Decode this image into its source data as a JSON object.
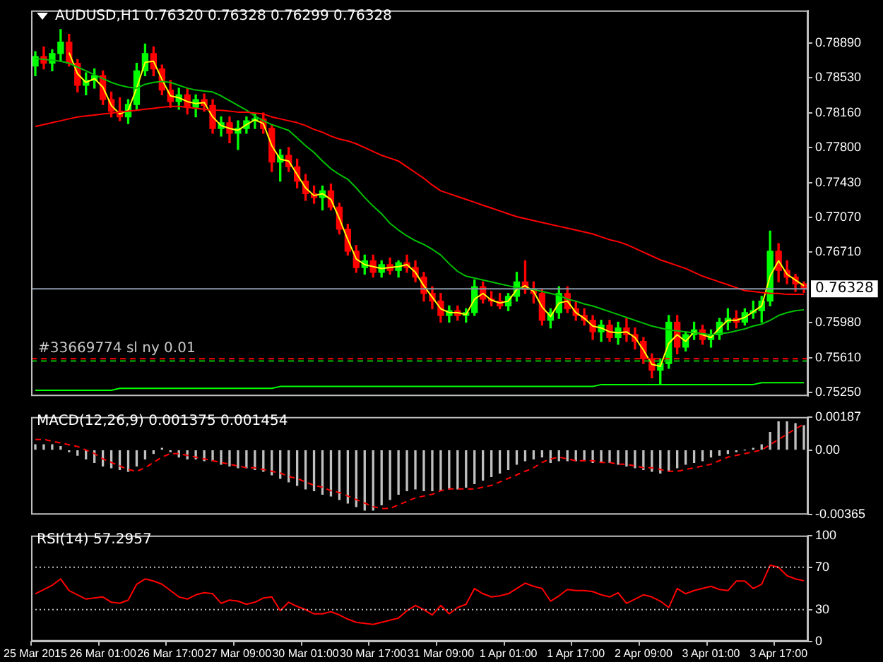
{
  "chart_data": [
    {
      "type": "candlestick",
      "title": "AUDUSD,H1  0.76320 0.76328 0.76299 0.76328",
      "tick_labels": "y",
      "grid": false,
      "categories": [
        null,
        null,
        null,
        null,
        null,
        null,
        null,
        null,
        null,
        null,
        null,
        null,
        null,
        null,
        null,
        null,
        null,
        null,
        null,
        null,
        null,
        null,
        null,
        null,
        null,
        null,
        null,
        null,
        null,
        null,
        null,
        null,
        null,
        null,
        null,
        null,
        null,
        null,
        null,
        null,
        null,
        null,
        null,
        null,
        null,
        null,
        null,
        null,
        null,
        null,
        null,
        null,
        null,
        null,
        null,
        null,
        null,
        null,
        null,
        null,
        null,
        null,
        null,
        null,
        null,
        null,
        null,
        null,
        null,
        null,
        null,
        null,
        null,
        null,
        null,
        null,
        null,
        null,
        null,
        null,
        null,
        null,
        null,
        null,
        null,
        null,
        null,
        null,
        null,
        null,
        null,
        null
      ],
      "ohlc": [
        [
          0.7865,
          0.788,
          0.7855,
          0.7875
        ],
        [
          0.7875,
          0.7885,
          0.7862,
          0.7868
        ],
        [
          0.7868,
          0.7882,
          0.786,
          0.7878
        ],
        [
          0.7878,
          0.7903,
          0.787,
          0.789
        ],
        [
          0.789,
          0.7898,
          0.7865,
          0.7868
        ],
        [
          0.7868,
          0.7872,
          0.7838,
          0.7845
        ],
        [
          0.7845,
          0.7858,
          0.7835,
          0.785
        ],
        [
          0.785,
          0.7862,
          0.7842,
          0.7855
        ],
        [
          0.7855,
          0.786,
          0.7825,
          0.783
        ],
        [
          0.783,
          0.7838,
          0.7812,
          0.7818
        ],
        [
          0.7818,
          0.7832,
          0.7808,
          0.7812
        ],
        [
          0.7812,
          0.783,
          0.7805,
          0.7825
        ],
        [
          0.7825,
          0.7868,
          0.782,
          0.786
        ],
        [
          0.786,
          0.7888,
          0.7855,
          0.7878
        ],
        [
          0.7878,
          0.7885,
          0.7855,
          0.7862
        ],
        [
          0.7862,
          0.7866,
          0.7835,
          0.784
        ],
        [
          0.784,
          0.785,
          0.7822,
          0.7828
        ],
        [
          0.7828,
          0.7842,
          0.782,
          0.7835
        ],
        [
          0.7835,
          0.7842,
          0.7815,
          0.7822
        ],
        [
          0.7822,
          0.7835,
          0.7812,
          0.783
        ],
        [
          0.783,
          0.7836,
          0.7818,
          0.7824
        ],
        [
          0.7824,
          0.783,
          0.7795,
          0.78
        ],
        [
          0.78,
          0.7812,
          0.7792,
          0.7806
        ],
        [
          0.7806,
          0.7812,
          0.7785,
          0.7795
        ],
        [
          0.7795,
          0.7808,
          0.7778,
          0.78
        ],
        [
          0.78,
          0.7812,
          0.7795,
          0.7808
        ],
        [
          0.7808,
          0.7815,
          0.78,
          0.781
        ],
        [
          0.781,
          0.7816,
          0.7795,
          0.78
        ],
        [
          0.78,
          0.7803,
          0.7755,
          0.7765
        ],
        [
          0.7765,
          0.7778,
          0.7745,
          0.7772
        ],
        [
          0.7772,
          0.778,
          0.7755,
          0.776
        ],
        [
          0.776,
          0.7768,
          0.7738,
          0.7745
        ],
        [
          0.7745,
          0.7752,
          0.7725,
          0.7732
        ],
        [
          0.7732,
          0.774,
          0.7722,
          0.7728
        ],
        [
          0.7728,
          0.774,
          0.7715,
          0.7735
        ],
        [
          0.7735,
          0.7742,
          0.7715,
          0.7718
        ],
        [
          0.7718,
          0.7722,
          0.769,
          0.7695
        ],
        [
          0.7695,
          0.77,
          0.7668,
          0.7672
        ],
        [
          0.7672,
          0.7678,
          0.765,
          0.7655
        ],
        [
          0.7655,
          0.7668,
          0.7648,
          0.7662
        ],
        [
          0.7662,
          0.7668,
          0.7645,
          0.765
        ],
        [
          0.765,
          0.7662,
          0.7645,
          0.7658
        ],
        [
          0.7658,
          0.7665,
          0.7648,
          0.7652
        ],
        [
          0.7652,
          0.7662,
          0.7645,
          0.766
        ],
        [
          0.766,
          0.7668,
          0.765,
          0.7655
        ],
        [
          0.7655,
          0.7662,
          0.764,
          0.7645
        ],
        [
          0.7645,
          0.765,
          0.762,
          0.7628
        ],
        [
          0.7628,
          0.7635,
          0.7612,
          0.762
        ],
        [
          0.762,
          0.7628,
          0.7598,
          0.7605
        ],
        [
          0.7605,
          0.7615,
          0.7598,
          0.761
        ],
        [
          0.761,
          0.7615,
          0.76,
          0.7605
        ],
        [
          0.7605,
          0.7612,
          0.7598,
          0.7608
        ],
        [
          0.7608,
          0.7642,
          0.7605,
          0.7635
        ],
        [
          0.7635,
          0.764,
          0.7618,
          0.7622
        ],
        [
          0.7622,
          0.763,
          0.7615,
          0.762
        ],
        [
          0.762,
          0.7628,
          0.7612,
          0.7615
        ],
        [
          0.7615,
          0.7628,
          0.761,
          0.7625
        ],
        [
          0.7625,
          0.765,
          0.762,
          0.764
        ],
        [
          0.764,
          0.7662,
          0.7628,
          0.7632
        ],
        [
          0.7632,
          0.764,
          0.7618,
          0.7628
        ],
        [
          0.7628,
          0.7632,
          0.7595,
          0.76
        ],
        [
          0.76,
          0.7612,
          0.7592,
          0.7608
        ],
        [
          0.7608,
          0.7635,
          0.7602,
          0.7628
        ],
        [
          0.7628,
          0.7635,
          0.7608,
          0.7612
        ],
        [
          0.7612,
          0.762,
          0.76,
          0.7605
        ],
        [
          0.7605,
          0.7612,
          0.7595,
          0.76
        ],
        [
          0.76,
          0.7605,
          0.758,
          0.7588
        ],
        [
          0.7588,
          0.76,
          0.7578,
          0.7595
        ],
        [
          0.7595,
          0.76,
          0.7578,
          0.7582
        ],
        [
          0.7582,
          0.7598,
          0.7575,
          0.7592
        ],
        [
          0.7592,
          0.7602,
          0.7578,
          0.7585
        ],
        [
          0.7585,
          0.7592,
          0.757,
          0.7578
        ],
        [
          0.7578,
          0.7582,
          0.7555,
          0.756
        ],
        [
          0.756,
          0.7565,
          0.754,
          0.7548
        ],
        [
          0.7548,
          0.756,
          0.7533,
          0.7555
        ],
        [
          0.7555,
          0.7605,
          0.755,
          0.7598
        ],
        [
          0.7598,
          0.7605,
          0.7565,
          0.7572
        ],
        [
          0.7572,
          0.7588,
          0.7568,
          0.7585
        ],
        [
          0.7585,
          0.7598,
          0.758,
          0.759
        ],
        [
          0.759,
          0.7595,
          0.7575,
          0.758
        ],
        [
          0.758,
          0.759,
          0.7572,
          0.7585
        ],
        [
          0.7585,
          0.7602,
          0.758,
          0.7598
        ],
        [
          0.7598,
          0.7612,
          0.759,
          0.7602
        ],
        [
          0.7602,
          0.761,
          0.7592,
          0.7598
        ],
        [
          0.7598,
          0.7612,
          0.7595,
          0.7608
        ],
        [
          0.7608,
          0.762,
          0.7602,
          0.761
        ],
        [
          0.761,
          0.7625,
          0.7598,
          0.762
        ],
        [
          0.762,
          0.7693,
          0.7615,
          0.7672
        ],
        [
          0.7672,
          0.768,
          0.764,
          0.7652
        ],
        [
          0.7652,
          0.7662,
          0.7638,
          0.7645
        ],
        [
          0.7645,
          0.7648,
          0.763,
          0.7638
        ],
        [
          0.7638,
          0.764,
          0.7629,
          0.76328
        ]
      ],
      "colors": [
        "#00ff00",
        "#ff0000",
        "#00ff00",
        "#00ff00",
        "#ff0000",
        "#ff0000",
        "#00ff00",
        "#00ff00",
        "#ff0000",
        "#ff0000",
        "#ff0000",
        "#00ff00",
        "#00ff00",
        "#00ff00",
        "#ff0000",
        "#ff0000",
        "#ff0000",
        "#00ff00",
        "#ff0000",
        "#00ff00",
        "#ff0000",
        "#ff0000",
        "#00ff00",
        "#ff0000",
        "#00ff00",
        "#00ff00",
        "#00ff00",
        "#ff0000",
        "#ff0000",
        "#00ff00",
        "#ff0000",
        "#ff0000",
        "#ff0000",
        "#ff0000",
        "#00ff00",
        "#ff0000",
        "#ff0000",
        "#ff0000",
        "#ff0000",
        "#00ff00",
        "#ff0000",
        "#00ff00",
        "#ff0000",
        "#00ff00",
        "#ff0000",
        "#ff0000",
        "#ff0000",
        "#ff0000",
        "#ff0000",
        "#00ff00",
        "#ff0000",
        "#00ff00",
        "#00ff00",
        "#ff0000",
        "#ff0000",
        "#ff0000",
        "#00ff00",
        "#00ff00",
        "#ff0000",
        "#ff0000",
        "#ff0000",
        "#00ff00",
        "#00ff00",
        "#ff0000",
        "#ff0000",
        "#ff0000",
        "#ff0000",
        "#00ff00",
        "#ff0000",
        "#00ff00",
        "#ff0000",
        "#ff0000",
        "#ff0000",
        "#ff0000",
        "#00ff00",
        "#00ff00",
        "#ff0000",
        "#00ff00",
        "#00ff00",
        "#ff0000",
        "#00ff00",
        "#00ff00",
        "#00ff00",
        "#ff0000",
        "#00ff00",
        "#00ff00",
        "#00ff00",
        "#00ff00",
        "#ff0000",
        "#ff0000",
        "#ff0000",
        "#ff0000"
      ],
      "series": [
        {
          "type": "line",
          "color": "#ff0000",
          "values": [
            0.7802,
            0.7804,
            0.7806,
            0.7808,
            0.781,
            0.7812,
            0.7813,
            0.7814,
            0.7815,
            0.7816,
            0.7817,
            0.7818,
            0.7819,
            0.782,
            0.7821,
            0.7822,
            0.7823,
            0.7823,
            0.7822,
            0.7821,
            0.782,
            0.7819,
            0.7819,
            0.7818,
            0.7817,
            0.7817,
            0.7816,
            0.7815,
            0.7812,
            0.781,
            0.7808,
            0.7806,
            0.7803,
            0.7799,
            0.7796,
            0.7792,
            0.7789,
            0.7787,
            0.7784,
            0.778,
            0.7776,
            0.7772,
            0.7769,
            0.7766,
            0.776,
            0.7754,
            0.7748,
            0.7741,
            0.7735,
            0.7732,
            0.7729,
            0.7726,
            0.7723,
            0.772,
            0.7717,
            0.7714,
            0.7711,
            0.7708,
            0.7706,
            0.7704,
            0.7702,
            0.77,
            0.7698,
            0.7696,
            0.7694,
            0.7692,
            0.769,
            0.7687,
            0.7684,
            0.7682,
            0.7679,
            0.7675,
            0.7671,
            0.7667,
            0.7663,
            0.766,
            0.7657,
            0.7654,
            0.765,
            0.7646,
            0.7643,
            0.764,
            0.7637,
            0.7634,
            0.7631,
            0.763,
            0.7629,
            0.7628,
            0.7628,
            0.7627,
            0.7627,
            0.7627
          ]
        },
        {
          "type": "line",
          "color": "#00c000",
          "values": [
            0.7873,
            0.7872,
            0.7871,
            0.787,
            0.7868,
            0.7864,
            0.786,
            0.7856,
            0.7852,
            0.7848,
            0.7845,
            0.7843,
            0.7842,
            0.7846,
            0.7848,
            0.7849,
            0.7848,
            0.7845,
            0.7842,
            0.784,
            0.7839,
            0.7838,
            0.7834,
            0.7829,
            0.7824,
            0.7819,
            0.7813,
            0.7808,
            0.7804,
            0.7801,
            0.7798,
            0.779,
            0.7782,
            0.7775,
            0.7766,
            0.7758,
            0.7752,
            0.7747,
            0.7738,
            0.7728,
            0.7719,
            0.7711,
            0.7701,
            0.7694,
            0.7688,
            0.7683,
            0.7679,
            0.7674,
            0.7668,
            0.7659,
            0.7651,
            0.7646,
            0.7644,
            0.7642,
            0.764,
            0.7638,
            0.7636,
            0.7634,
            0.7633,
            0.7632,
            0.763,
            0.7628,
            0.7626,
            0.7622,
            0.762,
            0.7617,
            0.7615,
            0.7612,
            0.7609,
            0.7606,
            0.7603,
            0.76,
            0.7597,
            0.7594,
            0.7592,
            0.759,
            0.7589,
            0.7588,
            0.7587,
            0.7586,
            0.7585,
            0.7586,
            0.7587,
            0.7589,
            0.7591,
            0.7594,
            0.7596,
            0.76,
            0.7605,
            0.7608,
            0.761,
            0.7611
          ]
        },
        {
          "type": "line",
          "color": "#ffff00",
          "values": [
            null,
            null,
            null,
            null,
            0.7879,
            0.7857,
            0.7848,
            0.7852,
            0.7843,
            0.7824,
            0.7815,
            0.7819,
            0.7842,
            0.7869,
            0.787,
            0.7851,
            0.7834,
            0.7832,
            0.7828,
            0.7826,
            0.7827,
            0.7812,
            0.7803,
            0.78,
            0.7798,
            0.7804,
            0.7809,
            0.7805,
            0.7782,
            0.7768,
            0.7766,
            0.7752,
            0.7738,
            0.773,
            0.7732,
            0.7726,
            0.7706,
            0.7684,
            0.7664,
            0.7658,
            0.7656,
            0.7654,
            0.7655,
            0.7656,
            0.7658,
            0.765,
            0.7636,
            0.7624,
            0.7612,
            0.7608,
            0.7608,
            0.7606,
            0.7622,
            0.7628,
            0.7621,
            0.7618,
            0.762,
            0.7632,
            0.7636,
            0.763,
            0.7614,
            0.7604,
            0.7618,
            0.762,
            0.7608,
            0.7602,
            0.7594,
            0.7592,
            0.7588,
            0.7587,
            0.7588,
            0.7582,
            0.7569,
            0.7554,
            0.7552,
            0.7576,
            0.7585,
            0.7578,
            0.7588,
            0.7585,
            0.7582,
            0.7592,
            0.76,
            0.76,
            0.7603,
            0.7609,
            0.7615,
            0.7646,
            0.7662,
            0.7648,
            0.7642,
            0.7636
          ]
        },
        {
          "type": "line",
          "color": "#00ff00",
          "values": [
            0.7527,
            0.7527,
            0.7527,
            0.7527,
            0.7527,
            0.7527,
            0.7527,
            0.7527,
            0.7527,
            0.7527,
            0.7529,
            0.7529,
            0.7529,
            0.7529,
            0.7529,
            0.7529,
            0.7529,
            0.7529,
            0.7529,
            0.7529,
            0.7529,
            0.7529,
            0.7529,
            0.7529,
            0.7529,
            0.7529,
            0.7529,
            0.7529,
            0.7529,
            0.7531,
            0.7531,
            0.7531,
            0.7531,
            0.7531,
            0.7531,
            0.7531,
            0.7531,
            0.7531,
            0.7531,
            0.7531,
            0.7531,
            0.7531,
            0.7531,
            0.7531,
            0.7531,
            0.7531,
            0.7531,
            0.7531,
            0.7531,
            0.7531,
            0.7531,
            0.7531,
            0.7531,
            0.7531,
            0.7531,
            0.7531,
            0.7531,
            0.7531,
            0.7531,
            0.7531,
            0.7531,
            0.7531,
            0.7531,
            0.7531,
            0.7531,
            0.7531,
            0.7531,
            0.7533,
            0.7533,
            0.7533,
            0.7533,
            0.7533,
            0.7533,
            0.7533,
            0.7533,
            0.7533,
            0.7533,
            0.7533,
            0.7533,
            0.7533,
            0.7533,
            0.7533,
            0.7533,
            0.7533,
            0.7533,
            0.7533,
            0.7535,
            0.7535,
            0.7535,
            0.7535,
            0.7535,
            0.7535
          ]
        }
      ],
      "ylim": [
        0.7521,
        0.7923
      ],
      "yticks": [
        {
          "value": 0.7889,
          "label": "0.78890"
        },
        {
          "value": 0.7853,
          "label": "0.78530"
        },
        {
          "value": 0.7816,
          "label": "0.78160"
        },
        {
          "value": 0.778,
          "label": "0.77800"
        },
        {
          "value": 0.7743,
          "label": "0.77430"
        },
        {
          "value": 0.7707,
          "label": "0.77070"
        },
        {
          "value": 0.7671,
          "label": "0.76710"
        },
        {
          "value": 0.7598,
          "label": "0.75980"
        },
        {
          "value": 0.7561,
          "label": "0.75610"
        },
        {
          "value": 0.7525,
          "label": "0.75250"
        }
      ],
      "ref_lines": [
        {
          "axis": "y",
          "value": 0.76328,
          "label": "0.76328",
          "color": "#8898a8",
          "line_style": "solid"
        },
        {
          "axis": "y",
          "value": 0.756,
          "label": "#33669774 sl ny 0.01",
          "color": "#ff0000",
          "line_style": "dashed"
        },
        {
          "axis": "y",
          "value": 0.75575,
          "label": null,
          "color": "#00c000",
          "line_style": "dashed"
        }
      ]
    },
    {
      "type": "bar",
      "title": "MACD(12,26,9) 0.001375 0.001454",
      "tick_labels": "y",
      "grid": false,
      "categories": [
        null,
        null,
        null,
        null,
        null,
        null,
        null,
        null,
        null,
        null,
        null,
        null,
        null,
        null,
        null,
        null,
        null,
        null,
        null,
        null,
        null,
        null,
        null,
        null,
        null,
        null,
        null,
        null,
        null,
        null,
        null,
        null,
        null,
        null,
        null,
        null,
        null,
        null,
        null,
        null,
        null,
        null,
        null,
        null,
        null,
        null,
        null,
        null,
        null,
        null,
        null,
        null,
        null,
        null,
        null,
        null,
        null,
        null,
        null,
        null,
        null,
        null,
        null,
        null,
        null,
        null,
        null,
        null,
        null,
        null,
        null,
        null,
        null,
        null,
        null,
        null,
        null,
        null,
        null,
        null,
        null,
        null,
        null,
        null,
        null,
        null,
        null,
        null,
        null,
        null,
        null,
        null
      ],
      "series": [
        {
          "type": "bar",
          "color": "#c0c0c0",
          "values": [
            0.0003,
            0.0003,
            0.0003,
            0.0002,
            -0.0001,
            -0.0003,
            -0.0005,
            -0.0007,
            -0.0009,
            -0.001,
            -0.0011,
            -0.0012,
            -0.0009,
            -0.0005,
            -0.0002,
            0.0001,
            -0.0001,
            -0.0004,
            -0.0005,
            -0.0005,
            -0.0006,
            -0.0006,
            -0.0008,
            -0.0009,
            -0.001,
            -0.001,
            -0.0011,
            -0.0012,
            -0.0014,
            -0.0016,
            -0.0018,
            -0.002,
            -0.0022,
            -0.0023,
            -0.0025,
            -0.0026,
            -0.0028,
            -0.003,
            -0.0032,
            -0.0034,
            -0.0034,
            -0.0031,
            -0.0028,
            -0.0025,
            -0.0023,
            -0.0022,
            -0.0023,
            -0.0023,
            -0.0023,
            -0.0022,
            -0.0022,
            -0.0021,
            -0.0019,
            -0.0017,
            -0.0015,
            -0.0013,
            -0.0011,
            -0.0008,
            -0.0006,
            -0.0005,
            -0.0004,
            -0.0007,
            -0.0006,
            -0.0006,
            -0.0006,
            -0.0006,
            -0.0007,
            -0.0007,
            -0.0007,
            -0.0008,
            -0.0009,
            -0.001,
            -0.0011,
            -0.0012,
            -0.0013,
            -0.0012,
            -0.001,
            -0.0008,
            -0.0007,
            -0.0006,
            -0.0004,
            -0.0003,
            -0.0002,
            -0.0001,
            0,
            0.0001,
            0.0003,
            0.001,
            0.0016,
            0.0016,
            0.0015,
            0.001375
          ]
        },
        {
          "type": "line",
          "color": "#ff0000",
          "line_style": "dashed",
          "values": [
            0.0006,
            0.0006,
            0.0005,
            0.0004,
            0.0003,
            0.0002,
            0,
            -0.0002,
            -0.0005,
            -0.0007,
            -0.0009,
            -0.0011,
            -0.0012,
            -0.001,
            -0.0007,
            -0.0004,
            -0.0002,
            -0.0002,
            -0.0003,
            -0.0004,
            -0.0005,
            -0.0006,
            -0.0007,
            -0.0008,
            -0.0009,
            -0.001,
            -0.001,
            -0.0011,
            -0.0012,
            -0.0013,
            -0.0015,
            -0.0016,
            -0.0018,
            -0.002,
            -0.0021,
            -0.0023,
            -0.0024,
            -0.0026,
            -0.0028,
            -0.003,
            -0.0032,
            -0.0033,
            -0.0033,
            -0.0031,
            -0.0029,
            -0.0027,
            -0.0026,
            -0.0025,
            -0.0023,
            -0.0022,
            -0.0022,
            -0.0022,
            -0.0022,
            -0.0021,
            -0.002,
            -0.0018,
            -0.0016,
            -0.0014,
            -0.0012,
            -0.001,
            -0.0007,
            -0.0005,
            -0.0004,
            -0.0005,
            -0.0006,
            -0.0006,
            -0.0006,
            -0.0007,
            -0.0007,
            -0.0008,
            -0.0008,
            -0.0009,
            -0.001,
            -0.001,
            -0.0011,
            -0.0012,
            -0.0012,
            -0.0011,
            -0.001,
            -0.0009,
            -0.0008,
            -0.0006,
            -0.0004,
            -0.0003,
            -0.0002,
            -0.0001,
            0,
            0.0003,
            0.0006,
            0.0009,
            0.0012,
            0.001454
          ]
        }
      ],
      "ylim": [
        -0.00365,
        0.00187
      ],
      "yticks": [
        {
          "value": 0.00187,
          "label": "0.00187"
        },
        {
          "value": 0,
          "label": "0.00"
        },
        {
          "value": -0.00365,
          "label": "-0.00365"
        }
      ]
    },
    {
      "type": "line",
      "title": "RSI(14) 57.2957",
      "grid": false,
      "categories": [
        "25 Mar 2015",
        null,
        null,
        null,
        null,
        null,
        null,
        null,
        "26 Mar 01:00",
        null,
        null,
        null,
        null,
        null,
        null,
        null,
        "26 Mar 17:00",
        null,
        null,
        null,
        null,
        null,
        null,
        null,
        "27 Mar 09:00",
        null,
        null,
        null,
        null,
        null,
        null,
        null,
        "30 Mar 01:00",
        null,
        null,
        null,
        null,
        null,
        null,
        null,
        "30 Mar 17:00",
        null,
        null,
        null,
        null,
        null,
        null,
        null,
        "31 Mar 09:00",
        null,
        null,
        null,
        null,
        null,
        null,
        null,
        "1 Apr 01:00",
        null,
        null,
        null,
        null,
        null,
        null,
        null,
        "1 Apr 17:00",
        null,
        null,
        null,
        null,
        null,
        null,
        null,
        "2 Apr 09:00",
        null,
        null,
        null,
        null,
        null,
        null,
        null,
        "3 Apr 01:00",
        null,
        null,
        null,
        null,
        null,
        null,
        null,
        "3 Apr 17:00",
        null,
        null,
        null
      ],
      "series": [
        {
          "color": "#ff0000",
          "values": [
            45,
            49,
            53,
            59,
            48,
            44,
            40,
            41,
            42,
            37,
            36,
            39,
            54,
            59,
            57,
            54,
            48,
            42,
            40,
            44,
            46,
            45,
            36,
            39,
            38,
            35,
            37,
            41,
            42,
            29,
            37,
            33,
            30,
            26,
            26,
            28,
            25,
            21,
            18,
            17,
            16,
            18,
            20,
            22,
            29,
            34,
            30,
            25,
            34,
            26,
            32,
            35,
            50,
            45,
            42,
            43,
            45,
            50,
            55,
            52,
            50,
            38,
            43,
            49,
            48,
            48,
            47,
            44,
            42,
            46,
            36,
            40,
            44,
            42,
            38,
            32,
            50,
            45,
            48,
            50,
            52,
            49,
            48,
            57,
            57,
            50,
            54,
            72,
            70,
            62,
            59,
            57.2957
          ]
        }
      ],
      "ylim": [
        0,
        100
      ],
      "yticks": [
        100,
        70,
        30,
        0
      ],
      "ref_lines": [
        {
          "axis": "y",
          "value": 70,
          "label": null,
          "color": "#c0c0c0",
          "line_style": "dotted"
        },
        {
          "axis": "y",
          "value": 30,
          "label": null,
          "color": "#c0c0c0",
          "line_style": "dotted"
        }
      ]
    }
  ]
}
